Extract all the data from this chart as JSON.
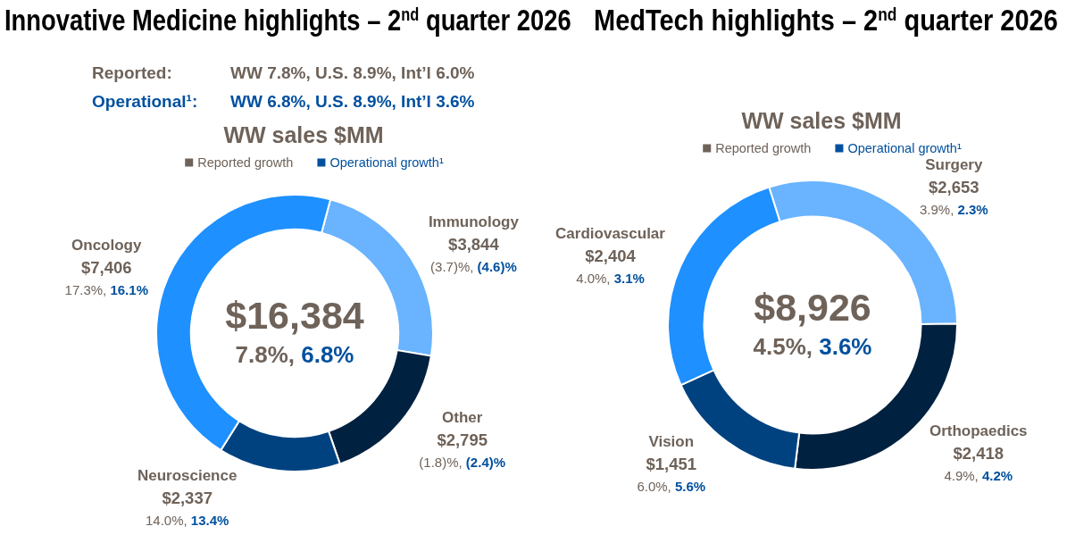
{
  "chart_data": [
    {
      "type": "donut",
      "title": "Innovative Medicine highlights – 2$^{nd}$ quarter 2026",
      "subtitle": "WW sales $MM",
      "categories": [
        "Immunology",
        "Other",
        "Neuroscience",
        "Oncology"
      ],
      "values": [
        3844,
        2795,
        2337,
        7406
      ],
      "colors": [
        "#69b3ff",
        "#00213f",
        "#00427f",
        "#1e90ff"
      ],
      "value_labels": [
        "$3,844",
        "$2,795",
        "$2,337",
        "$7,406"
      ],
      "annotations": [
        "Reported:",
        "WW 7.8%, U.S. 8.9%, Int’l 6.0%",
        "Operational¹:",
        "WW 6.8%, U.S. 8.9%, Int’l 3.6%",
        "Reported growth",
        "Operational growth¹",
        "$16,384",
        "7.8%, 6.8%",
        {
          "text": "(3.7)%, (4.6)%",
          "x": "Immunology"
        },
        {
          "text": "(1.8)%, (2.4)%",
          "x": "Other"
        },
        {
          "text": "14.0%, 13.4%",
          "x": "Neuroscience"
        },
        {
          "text": "17.3%, 16.1%",
          "x": "Oncology"
        }
      ]
    },
    {
      "type": "donut",
      "title": "MedTech highlights – 2$^{nd}$ quarter 2026",
      "subtitle": "WW sales $MM",
      "categories": [
        "Surgery",
        "Orthopaedics",
        "Vision",
        "Cardiovascular"
      ],
      "values": [
        2653,
        2418,
        1451,
        2404
      ],
      "colors": [
        "#69b3ff",
        "#00213f",
        "#00427f",
        "#1e90ff"
      ],
      "value_labels": [
        "$2,653",
        "$2,418",
        "$1,451",
        "$2,404"
      ],
      "annotations": [
        "Reported growth",
        "Operational growth¹",
        "$8,926",
        "4.5%, 3.6%",
        {
          "text": "3.9%, 2.3%",
          "x": "Surgery"
        },
        {
          "text": "4.9%, 4.2%",
          "x": "Orthopaedics"
        },
        {
          "text": "6.0%, 5.6%",
          "x": "Vision"
        },
        {
          "text": "4.0%, 3.1%",
          "x": "Cardiovascular"
        }
      ]
    }
  ]
}
